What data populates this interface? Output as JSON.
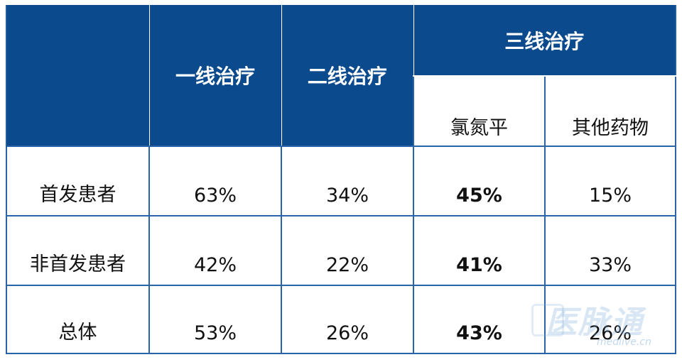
{
  "table": {
    "header": {
      "corner": "",
      "first_line": "一线治疗",
      "second_line": "二线治疗",
      "third_line": "三线治疗",
      "third_sub": [
        "氯氮平",
        "其他药物"
      ]
    },
    "rows": [
      {
        "label": "首发患者",
        "values": [
          "63%",
          "34%",
          "45%",
          "15%"
        ]
      },
      {
        "label": "非首发患者",
        "values": [
          "42%",
          "22%",
          "41%",
          "33%"
        ]
      },
      {
        "label": "总体",
        "values": [
          "53%",
          "26%",
          "43%",
          "26%"
        ]
      }
    ]
  },
  "watermark": {
    "text": "医脉通",
    "url": "medlive.cn"
  },
  "colors": {
    "header_bg": "#0b4a8c",
    "grid": "#2a64a8"
  }
}
